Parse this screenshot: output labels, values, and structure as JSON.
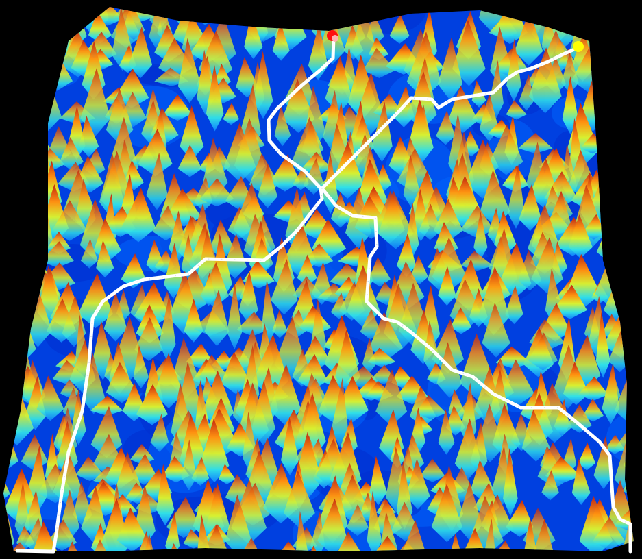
{
  "background_color": "#000000",
  "colormap": [
    "#0020c8",
    "#0050f0",
    "#00a0ff",
    "#30e0e8",
    "#90f060",
    "#f0e020",
    "#ff9010",
    "#e03010",
    "#a01008"
  ],
  "path_color": "#ffffff",
  "markers": [
    {
      "name": "red-endpoint-marker",
      "color": "#ff1010"
    },
    {
      "name": "yellow-endpoint-marker",
      "color": "#ffff00"
    }
  ]
}
